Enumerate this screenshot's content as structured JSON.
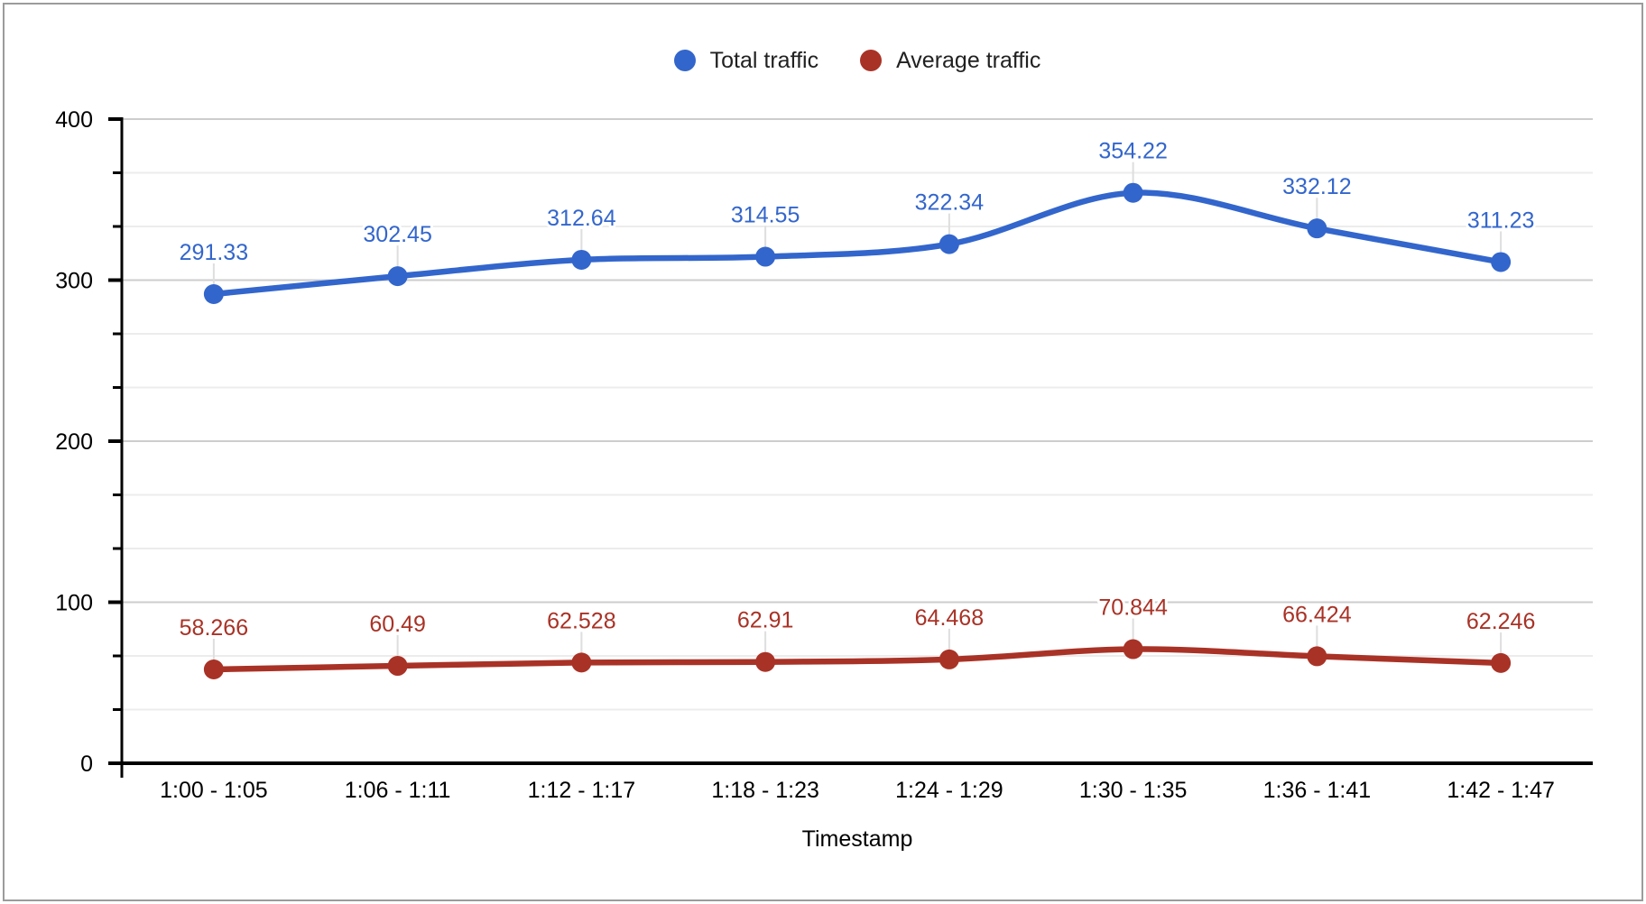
{
  "chart_data": {
    "type": "line",
    "smooth": true,
    "title": "",
    "xlabel": "Timestamp",
    "ylabel": "",
    "categories": [
      "1:00 - 1:05",
      "1:06 - 1:11",
      "1:12 - 1:17",
      "1:18 - 1:23",
      "1:24 - 1:29",
      "1:30 - 1:35",
      "1:36 - 1:41",
      "1:42 - 1:47"
    ],
    "series": [
      {
        "name": "Total traffic",
        "color": "#3366CC",
        "values": [
          291.33,
          302.45,
          312.64,
          314.55,
          322.34,
          354.22,
          332.12,
          311.23
        ]
      },
      {
        "name": "Average traffic",
        "color": "#A93226",
        "values": [
          58.266,
          60.49,
          62.528,
          62.91,
          64.468,
          70.844,
          66.424,
          62.246
        ]
      }
    ],
    "y_ticks": [
      0,
      100,
      200,
      300,
      400
    ],
    "ylim": [
      0,
      400
    ],
    "y_minor_divisions": 3,
    "grid": true,
    "data_labels_visible": true,
    "legend_position": "top"
  },
  "colors": {
    "background": "#ffffff",
    "frame_border": "#9b9b9b",
    "axis": "#000000",
    "major_gridline": "#cdcdcd",
    "minor_gridline": "#ececec",
    "leader_line": "#dedede",
    "tick_label": "#000000",
    "legend_text": "#212121"
  }
}
